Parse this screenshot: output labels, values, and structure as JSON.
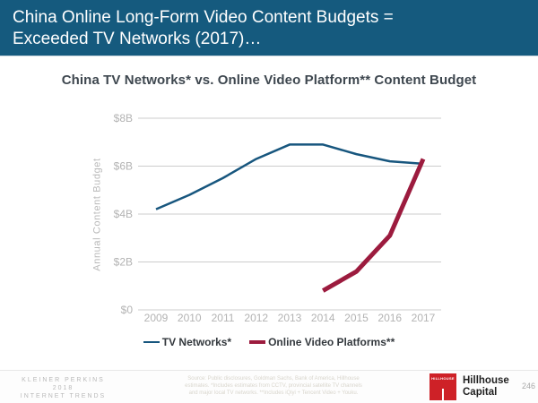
{
  "header": {
    "title_line1": "China Online Long-Form Video Content Budgets =",
    "title_line2": "Exceeded TV Networks (2017)…",
    "bg_color": "#155A7E"
  },
  "chart_data": {
    "type": "line",
    "title": "China TV Networks* vs. Online Video Platform** Content Budget",
    "xlabel": "",
    "ylabel": "Annual Content Budget",
    "x": [
      2009,
      2010,
      2011,
      2012,
      2013,
      2014,
      2015,
      2016,
      2017
    ],
    "series": [
      {
        "name": "TV Networks*",
        "color": "#17567E",
        "line_width": 2.5,
        "values": [
          4.2,
          4.8,
          5.5,
          6.3,
          6.9,
          6.9,
          6.5,
          6.2,
          6.1
        ]
      },
      {
        "name": "Online Video Platforms**",
        "color": "#9C1B3E",
        "line_width": 5,
        "values": [
          null,
          null,
          null,
          null,
          null,
          0.8,
          1.6,
          3.1,
          6.3
        ]
      }
    ],
    "ylim": [
      0,
      8
    ],
    "yticks": [
      {
        "value": 0,
        "label": "$0"
      },
      {
        "value": 2,
        "label": "$2B"
      },
      {
        "value": 4,
        "label": "$4B"
      },
      {
        "value": 6,
        "label": "$6B"
      },
      {
        "value": 8,
        "label": "$8B"
      }
    ],
    "grid": true,
    "legend_position": "bottom",
    "tick_color": "#b3b3b3",
    "grid_color": "#cccccc"
  },
  "footer": {
    "brand_line1": "KLEINER PERKINS",
    "brand_line2": "2018",
    "brand_line3": "INTERNET TRENDS",
    "source_line1": "Source: Public disclosures, Goldman Sachs, Bank of America, Hillhouse",
    "source_line2": "estimates. *Includes estimates from CCTV, provincial satellite TV channels",
    "source_line3": "and major local TV networks. **Includes iQiyi + Tencent Video + Youku.",
    "logo_square_text": "HILLHOUSE",
    "logo_name_line1": "Hillhouse",
    "logo_name_line2": "Capital",
    "logo_red": "#CE2127",
    "page_number": "246"
  }
}
